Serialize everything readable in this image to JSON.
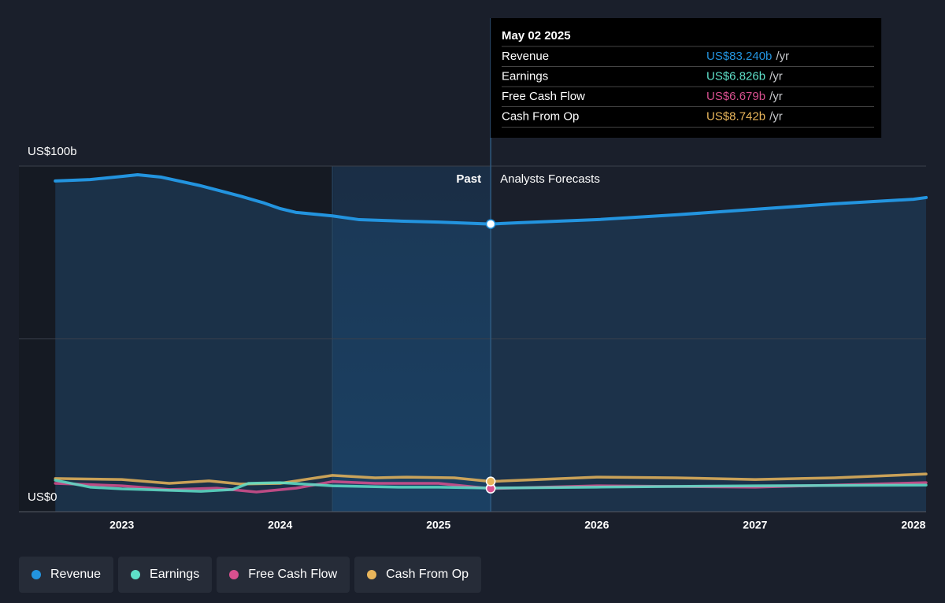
{
  "chart_data": {
    "type": "line",
    "xlim": [
      2022.35,
      2028.08
    ],
    "xticks": [
      2023,
      2024,
      2025,
      2026,
      2027,
      2028
    ],
    "ylim": [
      0,
      100
    ],
    "yticks": [
      {
        "value": 0,
        "label": "US$0"
      },
      {
        "value": 50,
        "label": null
      },
      {
        "value": 100,
        "label": "US$100b"
      }
    ],
    "grid": true,
    "past_label": "Past",
    "forecast_label": "Analysts Forecasts",
    "highlight_start": 2024.33,
    "series": [
      {
        "name": "Revenue",
        "color": "#2394df",
        "x": [
          2022.58,
          2022.8,
          2023.0,
          2023.1,
          2023.25,
          2023.5,
          2023.75,
          2023.9,
          2024.0,
          2024.1,
          2024.33,
          2024.5,
          2024.75,
          2025.0,
          2025.33,
          2025.5,
          2026.0,
          2026.5,
          2027.0,
          2027.5,
          2028.0,
          2028.08
        ],
        "values": [
          95.7,
          96.1,
          97.0,
          97.5,
          96.8,
          94.3,
          91.3,
          89.3,
          87.7,
          86.6,
          85.6,
          84.5,
          84.1,
          83.8,
          83.24,
          83.6,
          84.5,
          85.9,
          87.5,
          89.1,
          90.4,
          90.9
        ]
      },
      {
        "name": "Earnings",
        "color": "#5ee0c9",
        "x": [
          2022.58,
          2022.8,
          2023.0,
          2023.5,
          2023.7,
          2023.8,
          2024.0,
          2024.33,
          2024.75,
          2025.0,
          2025.33,
          2026.0,
          2027.0,
          2028.08
        ],
        "values": [
          9.1,
          7.1,
          6.6,
          5.9,
          6.4,
          8.2,
          8.4,
          7.5,
          7.1,
          7.1,
          6.826,
          7.1,
          7.5,
          7.7
        ]
      },
      {
        "name": "Free Cash Flow",
        "color": "#d8508f",
        "x": [
          2022.58,
          2023.0,
          2023.3,
          2023.6,
          2023.85,
          2024.1,
          2024.33,
          2024.6,
          2025.0,
          2025.33,
          2026.0,
          2027.0,
          2028.08
        ],
        "values": [
          8.2,
          7.5,
          6.4,
          6.8,
          5.7,
          6.8,
          8.7,
          8.2,
          8.2,
          6.679,
          7.5,
          7.1,
          8.4
        ]
      },
      {
        "name": "Cash From Op",
        "color": "#e8b55b",
        "x": [
          2022.58,
          2023.0,
          2023.3,
          2023.55,
          2023.75,
          2024.0,
          2024.1,
          2024.33,
          2024.6,
          2024.8,
          2025.1,
          2025.33,
          2026.0,
          2026.5,
          2027.0,
          2027.5,
          2028.08
        ],
        "values": [
          9.6,
          9.3,
          8.2,
          8.9,
          8.0,
          8.2,
          8.9,
          10.5,
          9.8,
          10.0,
          9.8,
          8.742,
          10.0,
          9.8,
          9.3,
          9.8,
          10.9
        ]
      }
    ],
    "tooltip": {
      "date": "May 02 2025",
      "x": 2025.33,
      "values": [
        83.24,
        6.826,
        6.679,
        8.742
      ],
      "value_labels": [
        "US$83.240b",
        "US$6.826b",
        "US$6.679b",
        "US$8.742b"
      ],
      "unit": "/yr"
    }
  }
}
